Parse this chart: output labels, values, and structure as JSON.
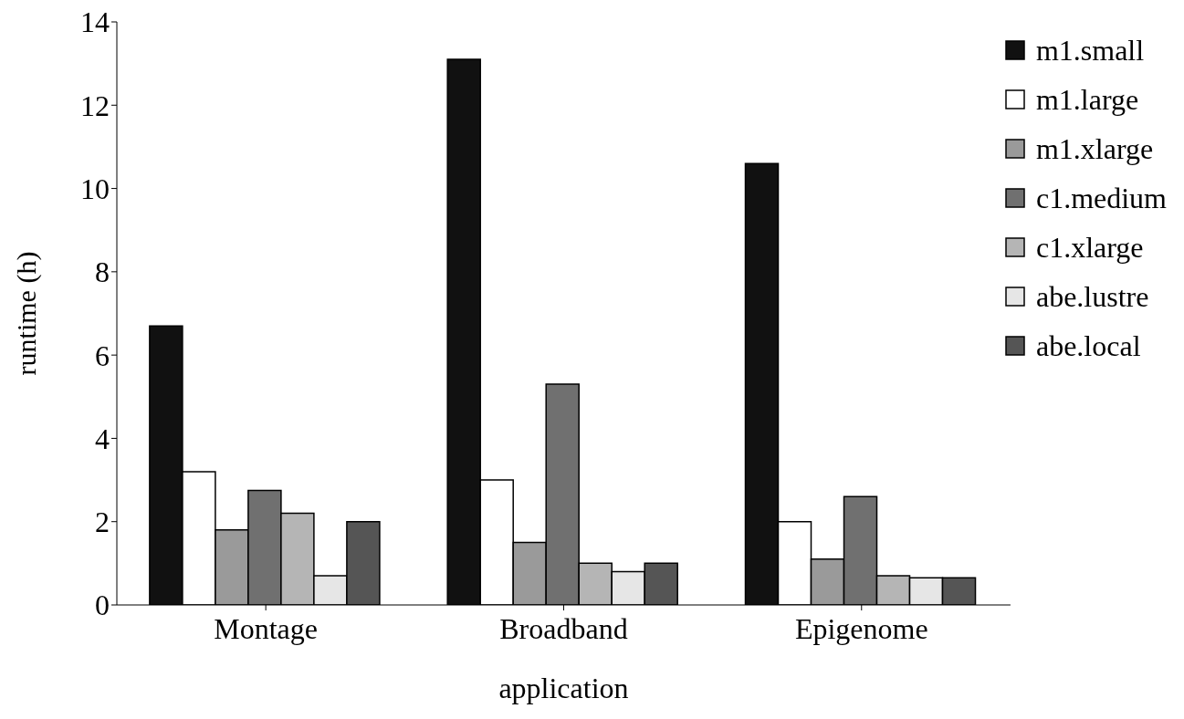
{
  "chart_data": {
    "type": "bar",
    "xlabel": "application",
    "ylabel": "runtime (h)",
    "categories": [
      "Montage",
      "Broadband",
      "Epigenome"
    ],
    "series": [
      {
        "name": "m1.small",
        "color": "#111111",
        "values": [
          6.7,
          13.1,
          10.6
        ]
      },
      {
        "name": "m1.large",
        "color": "#ffffff",
        "values": [
          3.2,
          3.0,
          2.0
        ]
      },
      {
        "name": "m1.xlarge",
        "color": "#9a9a9a",
        "values": [
          1.8,
          1.5,
          1.1
        ]
      },
      {
        "name": "c1.medium",
        "color": "#707070",
        "values": [
          2.75,
          5.3,
          2.6
        ]
      },
      {
        "name": "c1.xlarge",
        "color": "#b5b5b5",
        "values": [
          2.2,
          1.0,
          0.7
        ]
      },
      {
        "name": "abe.lustre",
        "color": "#e6e6e6",
        "values": [
          0.7,
          0.8,
          0.65
        ]
      },
      {
        "name": "abe.local",
        "color": "#555555",
        "values": [
          2.0,
          1.0,
          0.65
        ]
      }
    ],
    "ylim": [
      0,
      14
    ],
    "yticks": [
      0,
      2,
      4,
      6,
      8,
      10,
      12,
      14
    ],
    "grid": false,
    "legend": "top right"
  }
}
